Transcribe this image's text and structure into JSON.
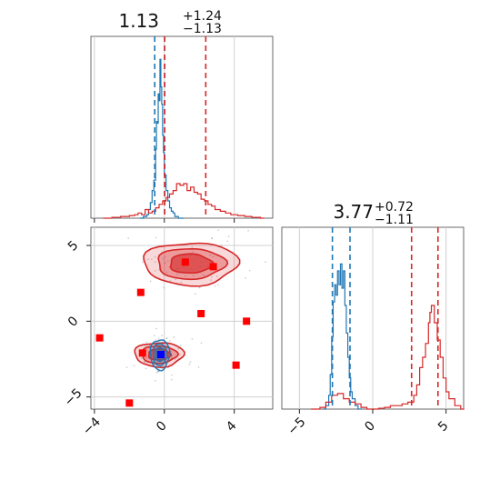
{
  "chart_data": {
    "type": "corner",
    "colors": {
      "series_a": "#1f77b4",
      "series_b": "#d62728",
      "marker": "#ff0000",
      "best": "#0000ff"
    },
    "grid": true,
    "panels": [
      {
        "id": "hist-x",
        "type": "histogram",
        "title": {
          "value": "1.13",
          "plus": "+1.24",
          "minus": "−1.13"
        },
        "xlim": [
          -4.2,
          6.2
        ],
        "ylim": [
          0,
          1
        ],
        "vlines": {
          "series_a": [
            -0.55,
            0.02
          ],
          "series_b": [
            0.02,
            2.37
          ]
        },
        "series": [
          {
            "key": "series_a",
            "x": [
              -1.4,
              -1.2,
              -1.0,
              -0.9,
              -0.8,
              -0.7,
              -0.6,
              -0.5,
              -0.45,
              -0.4,
              -0.35,
              -0.3,
              -0.25,
              -0.2,
              -0.15,
              -0.1,
              -0.05,
              0.0,
              0.1,
              0.2,
              0.3,
              0.4,
              0.5,
              0.6,
              0.7,
              0.8,
              0.9
            ],
            "values": [
              0.0,
              0.01,
              0.02,
              0.05,
              0.09,
              0.16,
              0.22,
              0.4,
              0.56,
              0.55,
              0.72,
              0.68,
              0.92,
              0.76,
              0.66,
              0.48,
              0.38,
              0.25,
              0.16,
              0.1,
              0.06,
              0.04,
              0.03,
              0.01,
              0.01,
              0.0,
              0.0
            ]
          },
          {
            "key": "series_b",
            "x": [
              -3.5,
              -3.0,
              -2.5,
              -2.0,
              -1.7,
              -1.5,
              -1.3,
              -1.1,
              -0.9,
              -0.7,
              -0.5,
              -0.3,
              -0.1,
              0.1,
              0.3,
              0.5,
              0.7,
              0.9,
              1.1,
              1.3,
              1.5,
              1.7,
              1.9,
              2.1,
              2.3,
              2.5,
              2.7,
              2.9,
              3.2,
              3.5,
              3.8,
              4.2,
              4.6,
              5.0,
              5.5
            ],
            "values": [
              0.0,
              0.005,
              0.01,
              0.015,
              0.02,
              0.03,
              0.02,
              0.05,
              0.03,
              0.04,
              0.06,
              0.08,
              0.1,
              0.12,
              0.14,
              0.16,
              0.2,
              0.19,
              0.2,
              0.16,
              0.18,
              0.15,
              0.14,
              0.11,
              0.1,
              0.08,
              0.07,
              0.05,
              0.04,
              0.03,
              0.02,
              0.015,
              0.01,
              0.005,
              0.0
            ]
          }
        ],
        "xticks": [
          -4,
          0,
          4
        ]
      },
      {
        "id": "scatter-xy",
        "type": "scatter-contour",
        "xlim": [
          -4.2,
          6.2
        ],
        "ylim": [
          -5.8,
          6.2
        ],
        "xticks": [
          -4,
          0,
          4
        ],
        "yticks": [
          -5,
          0,
          5
        ],
        "contours": {
          "series_b": [
            {
              "cx": 1.5,
              "cy": 3.8,
              "rx": 2.7,
              "ry": 1.4
            },
            {
              "cx": -0.3,
              "cy": -2.2,
              "rx": 1.4,
              "ry": 0.8
            }
          ],
          "series_a": [
            {
              "cx": -0.25,
              "cy": -2.2,
              "rx": 0.55,
              "ry": 1.0
            }
          ]
        },
        "markers": {
          "x": [
            -3.7,
            -1.35,
            -1.25,
            -2.0,
            1.2,
            2.1,
            2.8,
            4.1,
            4.7
          ],
          "y": [
            -1.1,
            1.9,
            -2.1,
            -5.4,
            3.9,
            0.5,
            3.6,
            -2.9,
            0.0
          ]
        },
        "best": {
          "x": -0.2,
          "y": -2.2
        }
      },
      {
        "id": "hist-y",
        "type": "histogram",
        "title": {
          "value": "3.77",
          "plus": "+0.72",
          "minus": "−1.11"
        },
        "xlim": [
          -6.2,
          6.2
        ],
        "ylim": [
          0,
          1
        ],
        "vlines": {
          "series_a": [
            -2.75,
            -1.55
          ],
          "series_b": [
            2.65,
            4.45
          ]
        },
        "series": [
          {
            "key": "series_a",
            "x": [
              -3.4,
              -3.2,
              -3.0,
              -2.9,
              -2.8,
              -2.7,
              -2.6,
              -2.5,
              -2.4,
              -2.3,
              -2.2,
              -2.1,
              -2.0,
              -1.9,
              -1.8,
              -1.7,
              -1.6,
              -1.5,
              -1.4,
              -1.2,
              -1.0
            ],
            "values": [
              0.0,
              0.02,
              0.08,
              0.2,
              0.42,
              0.62,
              0.72,
              0.66,
              0.8,
              0.72,
              0.84,
              0.7,
              0.8,
              0.6,
              0.44,
              0.3,
              0.18,
              0.1,
              0.06,
              0.02,
              0.0
            ]
          },
          {
            "key": "series_b",
            "x": [
              -4.2,
              -3.6,
              -3.2,
              -2.8,
              -2.4,
              -2.0,
              -1.6,
              -1.2,
              -0.8,
              -0.4,
              0.0,
              0.4,
              0.8,
              1.2,
              1.6,
              2.0,
              2.4,
              2.8,
              3.0,
              3.2,
              3.4,
              3.6,
              3.8,
              3.9,
              4.0,
              4.2,
              4.4,
              4.6,
              4.8,
              5.0,
              5.2,
              5.6,
              6.0
            ],
            "values": [
              0.0,
              0.01,
              0.04,
              0.08,
              0.09,
              0.06,
              0.04,
              0.03,
              0.01,
              0.0,
              0.0,
              0.005,
              0.01,
              0.02,
              0.02,
              0.03,
              0.04,
              0.08,
              0.14,
              0.24,
              0.3,
              0.38,
              0.5,
              0.56,
              0.6,
              0.5,
              0.4,
              0.3,
              0.18,
              0.1,
              0.06,
              0.02,
              0.0
            ]
          }
        ],
        "xticks": [
          -5,
          0,
          5
        ]
      }
    ]
  }
}
